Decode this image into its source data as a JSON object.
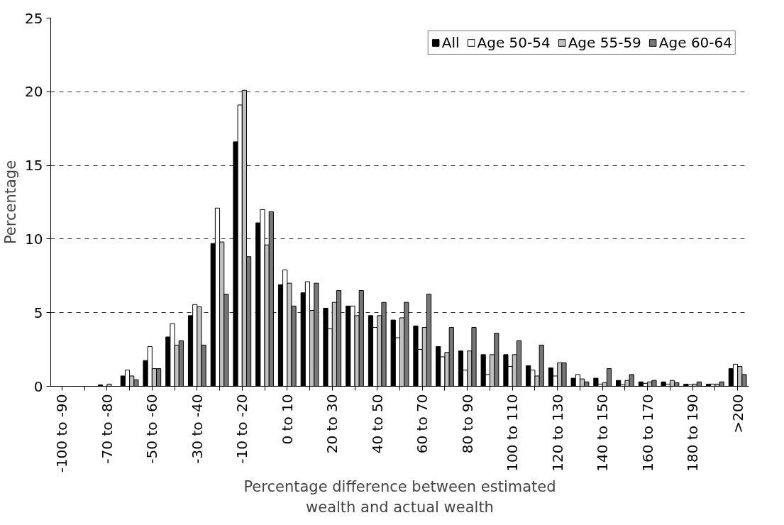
{
  "chart_data": {
    "type": "bar",
    "xlabel": "Percentage difference between estimated\nwealth and actual wealth",
    "ylabel": "Percentage",
    "categories": [
      "-100 to -90",
      null,
      "-70 to -80",
      null,
      "-50 to -60",
      null,
      "-30 to -40",
      null,
      "-10 to -20",
      null,
      "0 to 10",
      null,
      "20 to 30",
      null,
      "40 to 50",
      null,
      "60 to 70",
      null,
      "80 to 90",
      null,
      "100 to 110",
      null,
      "120 to 130",
      null,
      "140 to 150",
      null,
      "160 to 170",
      null,
      "180 to 190",
      null,
      ">200"
    ],
    "series": [
      {
        "name": "All",
        "color": "#000000",
        "values": [
          0,
          0,
          0.1,
          0.7,
          1.75,
          3.35,
          4.8,
          9.7,
          16.6,
          11.1,
          6.9,
          6.35,
          5.3,
          5.45,
          4.8,
          4.5,
          4.1,
          2.7,
          2.4,
          2.15,
          2.15,
          1.4,
          1.25,
          0.55,
          0.55,
          0.4,
          0.3,
          0.3,
          0.15,
          0.15,
          1.2
        ]
      },
      {
        "name": "Age 50-54",
        "color": "#ffffff",
        "values": [
          0,
          0,
          0,
          1.1,
          2.7,
          4.25,
          5.55,
          12.1,
          19.1,
          12.0,
          7.9,
          7.1,
          3.9,
          5.45,
          4.0,
          3.3,
          2.5,
          2.0,
          1.1,
          0.8,
          1.35,
          1.1,
          0.7,
          0.8,
          0.15,
          0.1,
          0.2,
          0.15,
          0.1,
          0.15,
          1.5
        ]
      },
      {
        "name": "Age 55-59",
        "color": "#c0c0c0",
        "values": [
          0,
          0,
          0.15,
          0.7,
          1.2,
          2.8,
          5.4,
          9.8,
          20.1,
          9.6,
          7.0,
          5.15,
          5.7,
          4.8,
          4.8,
          4.65,
          4.0,
          2.3,
          2.4,
          2.15,
          2.15,
          0.7,
          1.6,
          0.5,
          0.25,
          0.4,
          0.3,
          0.4,
          0.15,
          0.15,
          1.35
        ]
      },
      {
        "name": "Age 60-64",
        "color": "#777777",
        "values": [
          0,
          0,
          0,
          0.45,
          1.2,
          3.1,
          2.8,
          6.25,
          8.8,
          11.85,
          5.45,
          7.0,
          6.5,
          6.5,
          5.7,
          5.7,
          6.25,
          4.0,
          4.0,
          3.6,
          3.1,
          2.8,
          1.6,
          0.3,
          1.2,
          0.8,
          0.4,
          0.25,
          0.3,
          0.3,
          0.8
        ]
      }
    ],
    "ylim": [
      0,
      25
    ],
    "yticks": [
      0,
      5,
      10,
      15,
      20,
      25
    ],
    "grid": "y",
    "legend": "top right"
  }
}
